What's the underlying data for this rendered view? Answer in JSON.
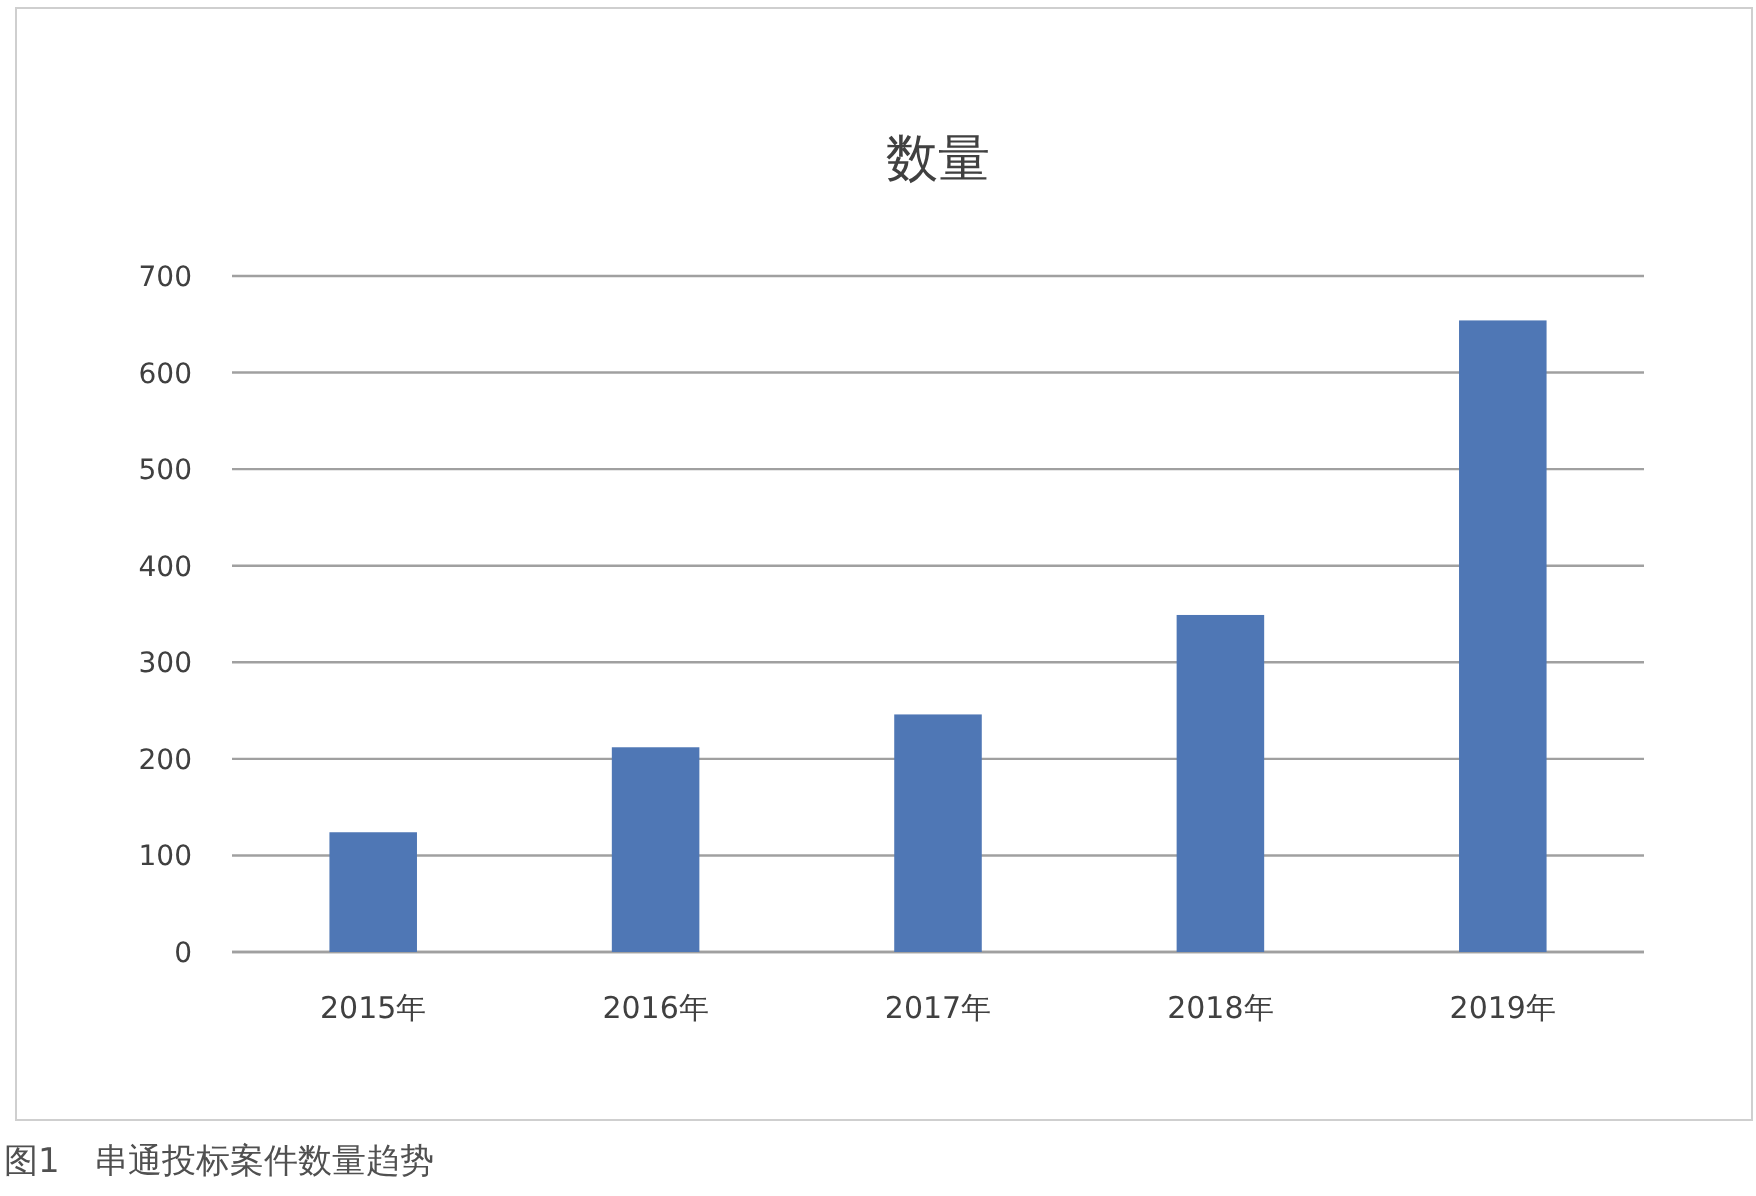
{
  "chart_data": {
    "type": "bar",
    "title": "数量",
    "categories": [
      "2015年",
      "2016年",
      "2017年",
      "2018年",
      "2019年"
    ],
    "values": [
      124,
      212,
      246,
      349,
      654
    ],
    "color": "#4f77b5",
    "ylim": [
      0,
      700
    ],
    "yticks": [
      0,
      100,
      200,
      300,
      400,
      500,
      600,
      700
    ],
    "grid": "y",
    "annotations": [
      "图1　串通投标案件数量趋势"
    ]
  }
}
